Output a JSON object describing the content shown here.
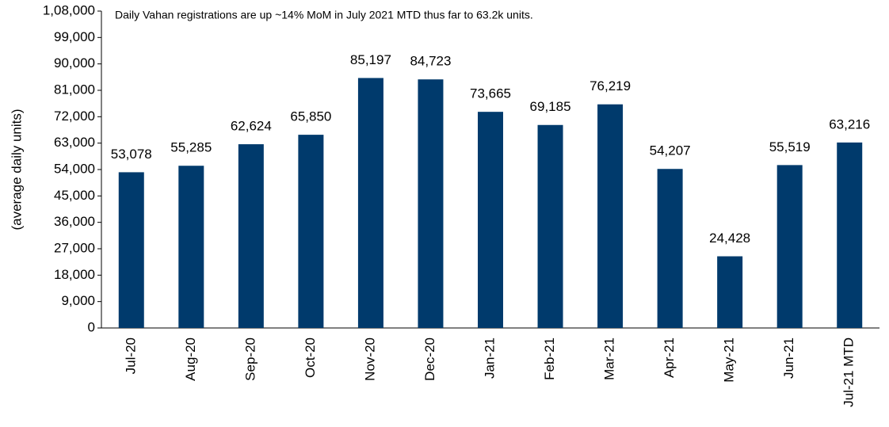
{
  "chart_data": {
    "type": "bar",
    "annotation": "Daily Vahan registrations are up ~14% MoM in July 2021 MTD thus far to 63.2k units.",
    "y_label": "(average   daily units)",
    "categories": [
      "Jul-20",
      "Aug-20",
      "Sep-20",
      "Oct-20",
      "Nov-20",
      "Dec-20",
      "Jan-21",
      "Feb-21",
      "Mar-21",
      "Apr-21",
      "May-21",
      "Jun-21",
      "Jul-21 MTD"
    ],
    "values": [
      53078,
      55285,
      62624,
      65850,
      85197,
      84723,
      73665,
      69185,
      76219,
      54207,
      24428,
      55519,
      63216
    ],
    "value_labels": [
      "53,078",
      "55,285",
      "62,624",
      "65,850",
      "85,197",
      "84,723",
      "73,665",
      "69,185",
      "76,219",
      "54,207",
      "24,428",
      "55,519",
      "63,216"
    ],
    "color": "#003a6c",
    "ylim": [
      0,
      108000
    ],
    "yticks": [
      0,
      {
        "value": 9000,
        "label": "9,000"
      },
      {
        "value": 18000,
        "label": "18,000"
      },
      {
        "value": 27000,
        "label": "27,000"
      },
      {
        "value": 36000,
        "label": "36,000"
      },
      {
        "value": 45000,
        "label": "45,000"
      },
      {
        "value": 54000,
        "label": "54,000"
      },
      {
        "value": 63000,
        "label": "63,000"
      },
      {
        "value": 72000,
        "label": "72,000"
      },
      {
        "value": 81000,
        "label": "81,000"
      },
      {
        "value": 90000,
        "label": "90,000"
      },
      {
        "value": 99000,
        "label": "99,000"
      },
      {
        "value": 108000,
        "label": "1,08,000"
      }
    ]
  }
}
